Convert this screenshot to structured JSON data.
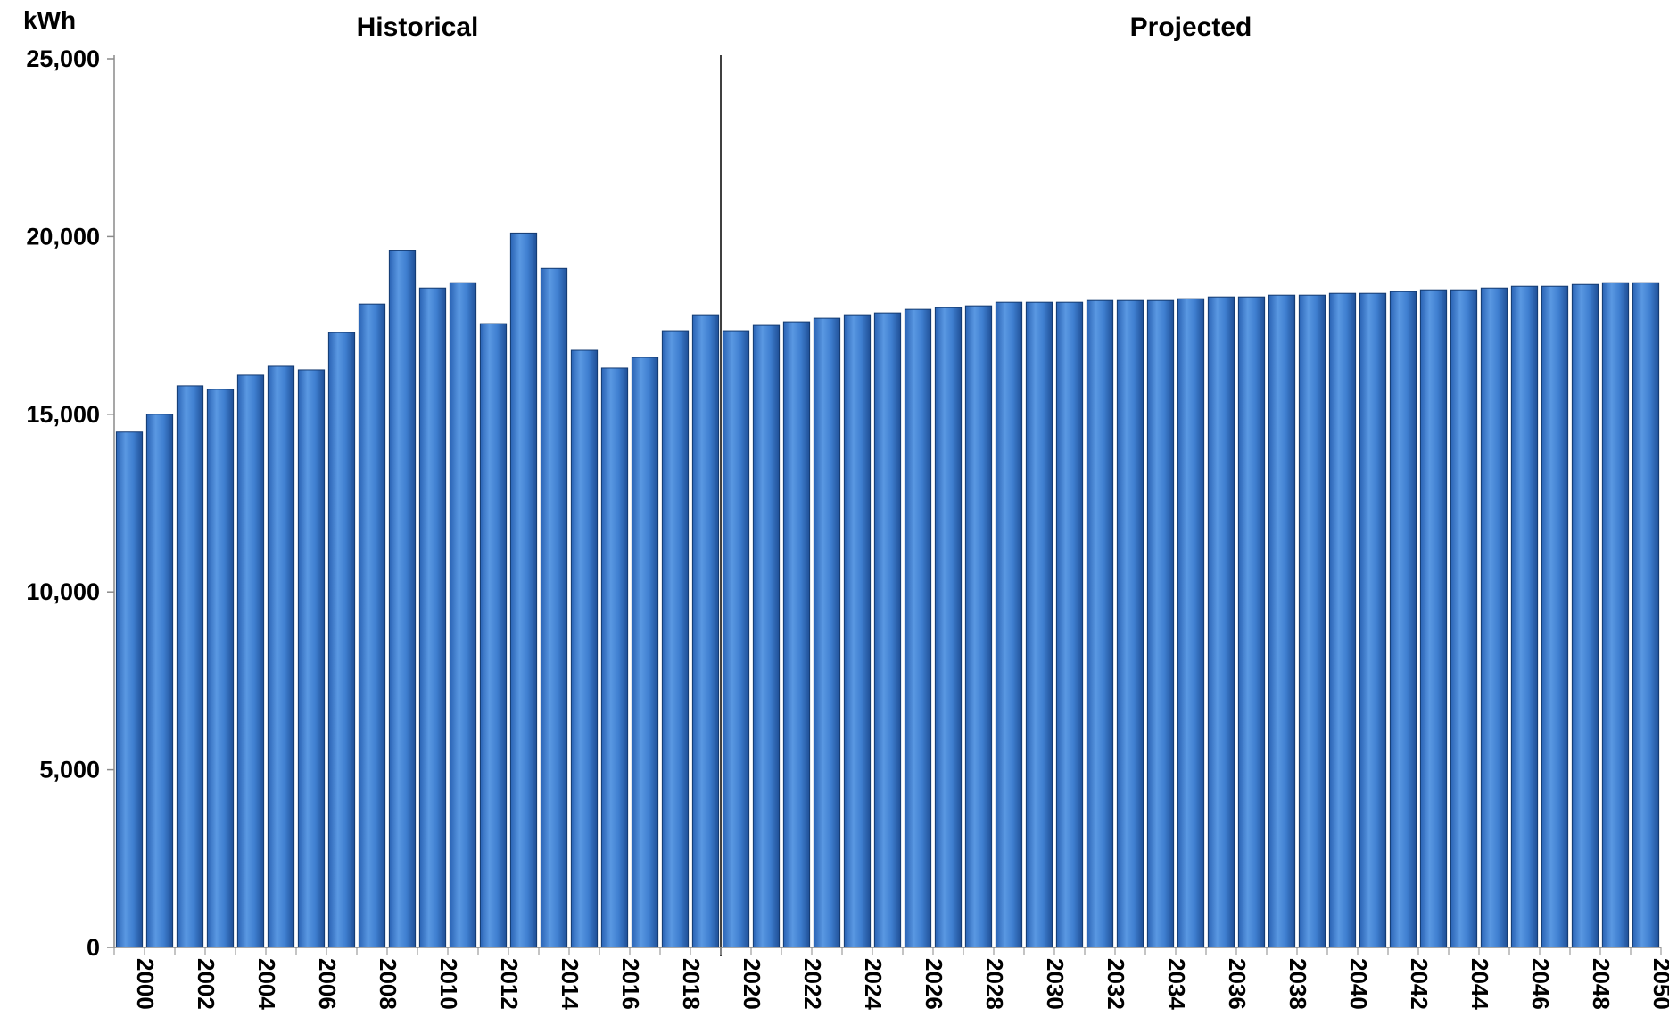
{
  "chart_data": {
    "type": "bar",
    "title": "",
    "xlabel": "",
    "ylabel": "kWh",
    "ylim": [
      0,
      25000
    ],
    "yticks": [
      0,
      5000,
      10000,
      15000,
      20000,
      25000
    ],
    "ytick_labels": [
      "0",
      "5,000",
      "10,000",
      "15,000",
      "20,000",
      "25,000"
    ],
    "divider_between": [
      "2019",
      "2020"
    ],
    "regions": [
      {
        "label": "Historical",
        "from": "2000",
        "to": "2019"
      },
      {
        "label": "Projected",
        "from": "2020",
        "to": "2050"
      }
    ],
    "bar_color": "#3f7fd0",
    "grid": false,
    "legend": "none",
    "categories": [
      "2000",
      "2001",
      "2002",
      "2003",
      "2004",
      "2005",
      "2006",
      "2007",
      "2008",
      "2009",
      "2010",
      "2011",
      "2012",
      "2013",
      "2014",
      "2015",
      "2016",
      "2017",
      "2018",
      "2019",
      "2020",
      "2021",
      "2022",
      "2023",
      "2024",
      "2025",
      "2026",
      "2027",
      "2028",
      "2029",
      "2030",
      "2031",
      "2032",
      "2033",
      "2034",
      "2035",
      "2036",
      "2037",
      "2038",
      "2039",
      "2040",
      "2041",
      "2042",
      "2043",
      "2044",
      "2045",
      "2046",
      "2047",
      "2048",
      "2049",
      "2050"
    ],
    "tick_labels": [
      "2000",
      "2002",
      "2004",
      "2006",
      "2008",
      "2010",
      "2012",
      "2014",
      "2016",
      "2018",
      "2020",
      "2022",
      "2024",
      "2026",
      "2028",
      "2030",
      "2032",
      "2034",
      "2036",
      "2038",
      "2040",
      "2042",
      "2044",
      "2046",
      "2048",
      "2050"
    ],
    "values": [
      14500,
      15000,
      15800,
      15700,
      16100,
      16350,
      16250,
      17300,
      18100,
      19600,
      18550,
      18700,
      17550,
      20100,
      19100,
      16800,
      16300,
      16600,
      17350,
      17800,
      17350,
      17500,
      17600,
      17700,
      17800,
      17850,
      17950,
      18000,
      18050,
      18150,
      18150,
      18150,
      18200,
      18200,
      18200,
      18250,
      18300,
      18300,
      18350,
      18350,
      18400,
      18400,
      18450,
      18500,
      18500,
      18550,
      18600,
      18600,
      18650,
      18700,
      18700
    ]
  }
}
